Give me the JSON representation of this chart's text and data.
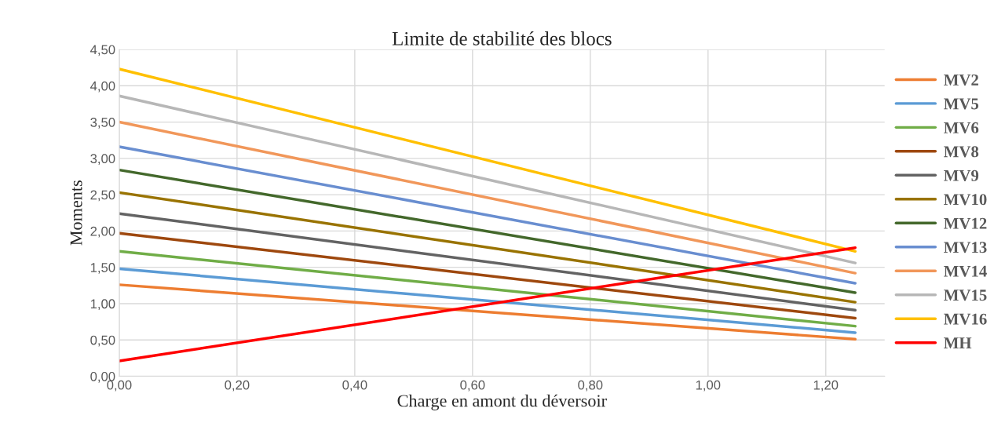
{
  "chart_data": {
    "type": "line",
    "title": "Limite de stabilité des blocs",
    "xlabel": "Charge en amont du déversoir",
    "ylabel": "Moments",
    "x": [
      0,
      1.25
    ],
    "xlim": [
      0,
      1.3
    ],
    "xticks": [
      {
        "value": 0,
        "label": "0,00"
      },
      {
        "value": 0.2,
        "label": "0,20"
      },
      {
        "value": 0.4,
        "label": "0,40"
      },
      {
        "value": 0.6,
        "label": "0,60"
      },
      {
        "value": 0.8,
        "label": "0,80"
      },
      {
        "value": 1.0,
        "label": "1,00"
      },
      {
        "value": 1.2,
        "label": "1,20"
      }
    ],
    "ylim": [
      0,
      4.5
    ],
    "yticks": [
      {
        "value": 0,
        "label": "0,00"
      },
      {
        "value": 0.5,
        "label": "0,50"
      },
      {
        "value": 1.0,
        "label": "1,00"
      },
      {
        "value": 1.5,
        "label": "1,50"
      },
      {
        "value": 2.0,
        "label": "2,00"
      },
      {
        "value": 2.5,
        "label": "2,50"
      },
      {
        "value": 3.0,
        "label": "3,00"
      },
      {
        "value": 3.5,
        "label": "3,50"
      },
      {
        "value": 4.0,
        "label": "4,00"
      },
      {
        "value": 4.5,
        "label": "4,50"
      }
    ],
    "grid": true,
    "legend": "right",
    "marker": "none",
    "line_style": "solid",
    "series": [
      {
        "name": "MV2",
        "color": "#ed7d31",
        "values": [
          1.26,
          0.51
        ]
      },
      {
        "name": "MV5",
        "color": "#5b9bd5",
        "values": [
          1.48,
          0.6
        ]
      },
      {
        "name": "MV6",
        "color": "#70ad47",
        "values": [
          1.72,
          0.69
        ]
      },
      {
        "name": "MV8",
        "color": "#9e480e",
        "values": [
          1.97,
          0.8
        ]
      },
      {
        "name": "MV9",
        "color": "#636363",
        "values": [
          2.24,
          0.91
        ]
      },
      {
        "name": "MV10",
        "color": "#997300",
        "values": [
          2.53,
          1.02
        ]
      },
      {
        "name": "MV12",
        "color": "#43682b",
        "values": [
          2.84,
          1.15
        ]
      },
      {
        "name": "MV13",
        "color": "#698ed0",
        "values": [
          3.16,
          1.28
        ]
      },
      {
        "name": "MV14",
        "color": "#f1975a",
        "values": [
          3.5,
          1.42
        ]
      },
      {
        "name": "MV15",
        "color": "#b7b7b7",
        "values": [
          3.86,
          1.56
        ]
      },
      {
        "name": "MV16",
        "color": "#ffc000",
        "values": [
          4.23,
          1.72
        ]
      },
      {
        "name": "MH",
        "color": "#ff0000",
        "values": [
          0.21,
          1.77
        ]
      }
    ]
  }
}
